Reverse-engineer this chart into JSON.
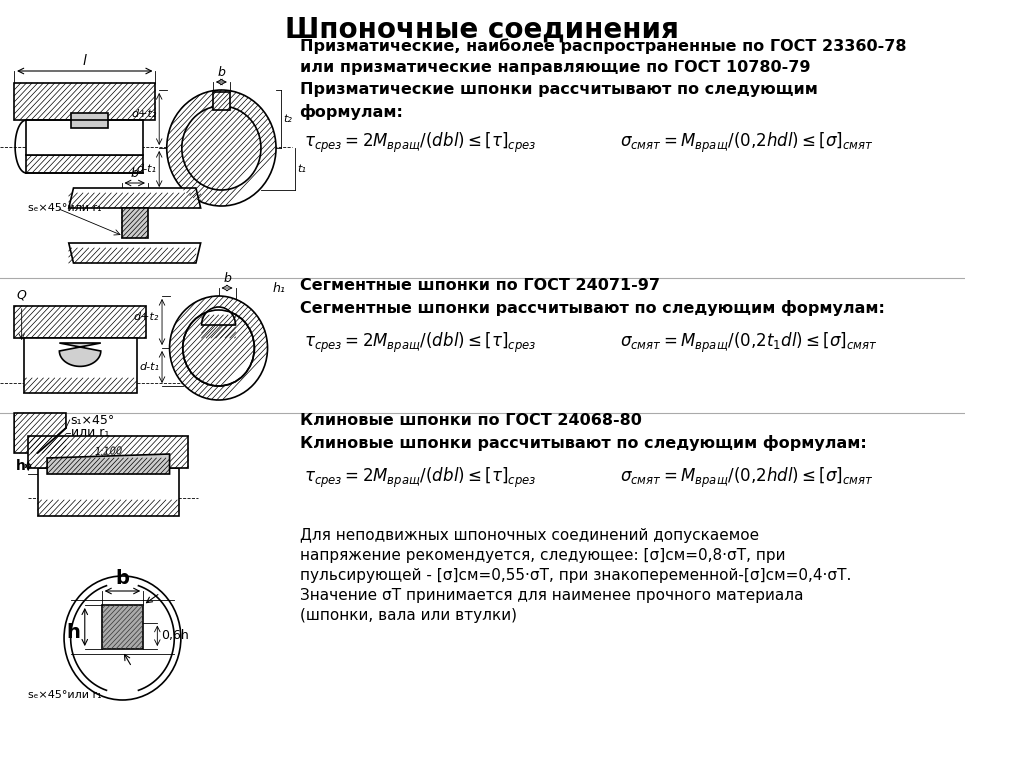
{
  "title": "Шпоночные соединения",
  "background_color": "#ffffff",
  "title_fontsize": 20,
  "title_fontweight": "bold",
  "s1_line1": "Призматические, наиболее распространенные по ГОСТ 23360-78",
  "s1_line2": "или призматические направляющие по ГОСТ 10780-79",
  "s1_line3": "Призматические шпонки рассчитывают по следующим",
  "s1_line4": "формулам:",
  "s2_line1": "Сегментные шпонки по ГОСТ 24071-97",
  "s2_line2": "Сегментные шпонки рассчитывают по следующим формулам:",
  "s3_line1": "Клиновые шпонки по ГОСТ 24068-80",
  "s3_line2": "Клиновые шпонки рассчитывают по следующим формулам:",
  "s4_line1": "Для неподвижных шпоночных соединений допускаемое",
  "s4_line2": "напряжение рекомендуется, следующее: [σ]см=0,8·σТ, при",
  "s4_line3": "пульсирующей - [σ]см=0,55·σТ, при знакопеременной-[σ]см=0,4·σТ.",
  "s4_line4": "Значение σТ принимается для наименее прочного материала",
  "s4_line5": "(шпонки, вала или втулки)"
}
